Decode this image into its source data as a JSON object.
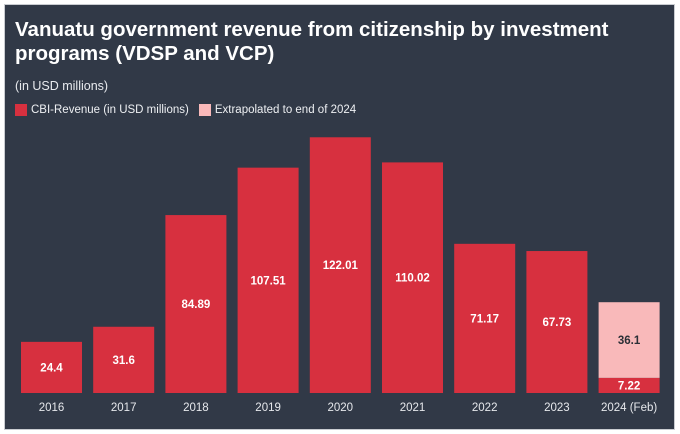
{
  "chart_data": {
    "type": "bar",
    "title": "Vanuatu government revenue from citizenship by investment programs (VDSP and VCP)",
    "subtitle": "(in USD millions)",
    "categories": [
      "2016",
      "2017",
      "2018",
      "2019",
      "2020",
      "2021",
      "2022",
      "2023",
      "2024 (Feb)"
    ],
    "series": [
      {
        "name": "CBI-Revenue (in USD millions)",
        "color": "#d7303f",
        "values": [
          24.4,
          31.6,
          84.89,
          107.51,
          122.01,
          110.02,
          71.17,
          67.73,
          7.22
        ],
        "labels": [
          "24.4",
          "31.6",
          "84.89",
          "107.51",
          "122.01",
          "110.02",
          "71.17",
          "67.73",
          "7.22"
        ]
      },
      {
        "name": "Extrapolated to end of 2024",
        "color": "#f9b9ba",
        "values": [
          null,
          null,
          null,
          null,
          null,
          null,
          null,
          null,
          36.1
        ],
        "labels": [
          "",
          "",
          "",
          "",
          "",
          "",
          "",
          "",
          "36.1"
        ]
      }
    ],
    "stacked": true,
    "ylim": [
      0,
      125
    ],
    "grid": false,
    "legend_position": "top-left",
    "background_color": "#313947"
  }
}
